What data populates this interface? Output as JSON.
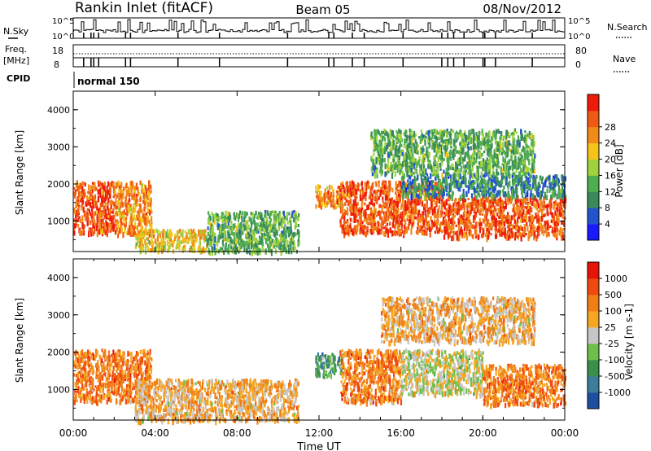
{
  "header": {
    "station": "Rankin Inlet (fitACF)",
    "beam": "Beam 05",
    "date": "08/Nov/2012"
  },
  "panels": {
    "nsky_label": "N.Sky",
    "nsky_ticks": [
      "10^5",
      "10^0"
    ],
    "nsearch_label": "N.Search",
    "nsearch_ticks": [
      "10^5",
      "10^0"
    ],
    "freq_label": "Freq.",
    "freq_unit": "[MHz]",
    "freq_ticks": [
      "18",
      "8"
    ],
    "nave_label": "Nave",
    "nave_ticks": [
      "80",
      "0"
    ],
    "cpid_label": "CPID",
    "cpid_value": "normal 150"
  },
  "chart_data": [
    {
      "type": "heatmap",
      "name": "power",
      "ylabel": "Slant Range [km]",
      "xlabel": "",
      "y_ticks": [
        "1000",
        "2000",
        "3000",
        "4000"
      ],
      "ylim": [
        180,
        4500
      ],
      "xlim_hours": [
        0,
        24
      ],
      "colorbar": {
        "label": "Power [dB]",
        "ticks": [
          "4",
          "8",
          "12",
          "16",
          "20",
          "24",
          "28"
        ],
        "colors": [
          "#1a1aff",
          "#2255cc",
          "#3a8a5a",
          "#4fae4f",
          "#9fd23c",
          "#f5c31a",
          "#f08a18",
          "#ef5a14",
          "#ef1a0a"
        ]
      },
      "regions": [
        {
          "t0": 0.0,
          "t1": 2.0,
          "r0": 700,
          "r1": 2100,
          "level": 7
        },
        {
          "t0": 2.0,
          "t1": 3.8,
          "r0": 650,
          "r1": 2100,
          "level": 6
        },
        {
          "t0": 3.0,
          "t1": 6.5,
          "r0": 250,
          "r1": 800,
          "level": 5
        },
        {
          "t0": 6.5,
          "t1": 11.0,
          "r0": 200,
          "r1": 1300,
          "level": 3
        },
        {
          "t0": 11.8,
          "t1": 13.2,
          "r0": 1400,
          "r1": 2000,
          "level": 6
        },
        {
          "t0": 13.0,
          "t1": 18.0,
          "r0": 700,
          "r1": 2100,
          "level": 7
        },
        {
          "t0": 18.0,
          "t1": 24.0,
          "r0": 600,
          "r1": 1700,
          "level": 7
        },
        {
          "t0": 16.0,
          "t1": 24.0,
          "r0": 1700,
          "r1": 2300,
          "level": 2
        },
        {
          "t0": 14.5,
          "t1": 22.5,
          "r0": 2300,
          "r1": 3500,
          "level": 3
        }
      ]
    },
    {
      "type": "heatmap",
      "name": "velocity",
      "ylabel": "Slant Range [km]",
      "xlabel": "Time UT",
      "x_ticks": [
        "00:00",
        "04:00",
        "08:00",
        "12:00",
        "16:00",
        "20:00",
        "00:00"
      ],
      "y_ticks": [
        "1000",
        "2000",
        "3000",
        "4000"
      ],
      "ylim": [
        180,
        4500
      ],
      "xlim_hours": [
        0,
        24
      ],
      "colorbar": {
        "label": "Velocity [m s-1]",
        "ticks": [
          "1000",
          "500",
          "100",
          "25",
          "-25",
          "-100",
          "-500",
          "-1000"
        ],
        "colors": [
          "#1c4fa0",
          "#3d7d9a",
          "#3a8f4a",
          "#6cc04a",
          "#c6c6c6",
          "#f5a623",
          "#f07e16",
          "#ef4a10",
          "#e8140a"
        ]
      },
      "regions": [
        {
          "t0": 0.0,
          "t1": 3.8,
          "r0": 700,
          "r1": 2100,
          "level": 6
        },
        {
          "t0": 3.0,
          "t1": 11.0,
          "r0": 200,
          "r1": 1300,
          "level": 5
        },
        {
          "t0": 11.8,
          "t1": 13.2,
          "r0": 1400,
          "r1": 2000,
          "level": 2
        },
        {
          "t0": 13.0,
          "t1": 16.0,
          "r0": 700,
          "r1": 2100,
          "level": 6
        },
        {
          "t0": 16.0,
          "t1": 20.0,
          "r0": 900,
          "r1": 2100,
          "level": 4
        },
        {
          "t0": 20.0,
          "t1": 24.0,
          "r0": 600,
          "r1": 1700,
          "level": 6
        },
        {
          "t0": 15.0,
          "t1": 22.5,
          "r0": 2300,
          "r1": 3500,
          "level": 5
        }
      ]
    }
  ]
}
